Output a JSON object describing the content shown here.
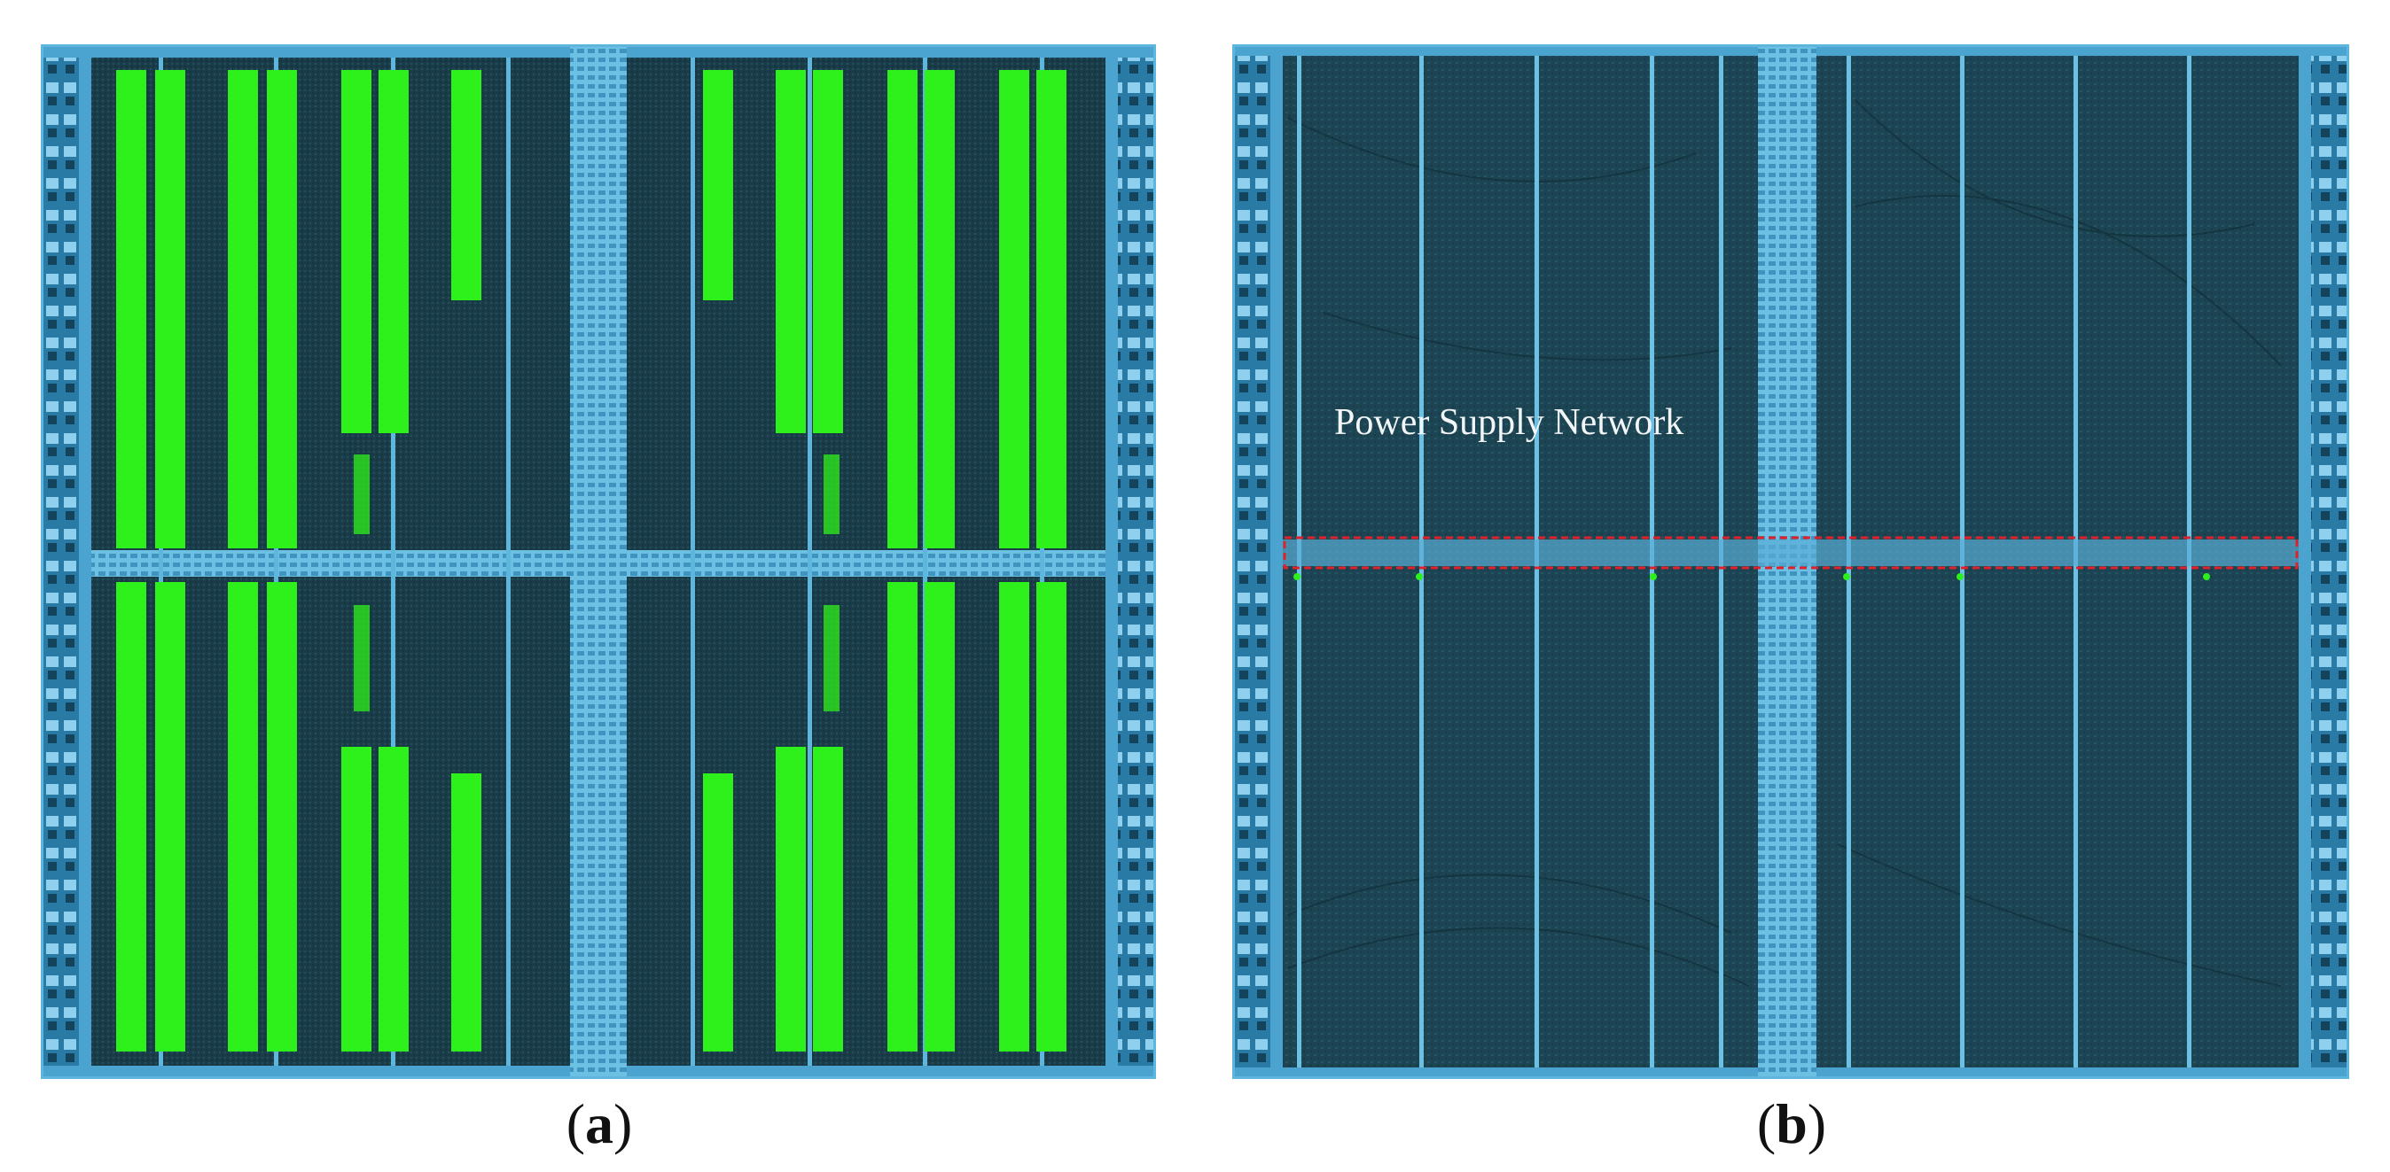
{
  "panels": [
    {
      "id": "a",
      "caption_open": "(",
      "caption_letter": "a",
      "caption_close": ")"
    },
    {
      "id": "b",
      "caption_open": "(",
      "caption_letter": "b",
      "caption_close": ")"
    }
  ],
  "annotations": {
    "power_supply_network": "Power Supply Network"
  },
  "colors": {
    "die_background": "#183a47",
    "metal_lines": "#5fb6dd",
    "pad_ring": "#2f86b4",
    "emission_hotspots": "#2ef01a",
    "highlight_box": "#e0212a"
  }
}
